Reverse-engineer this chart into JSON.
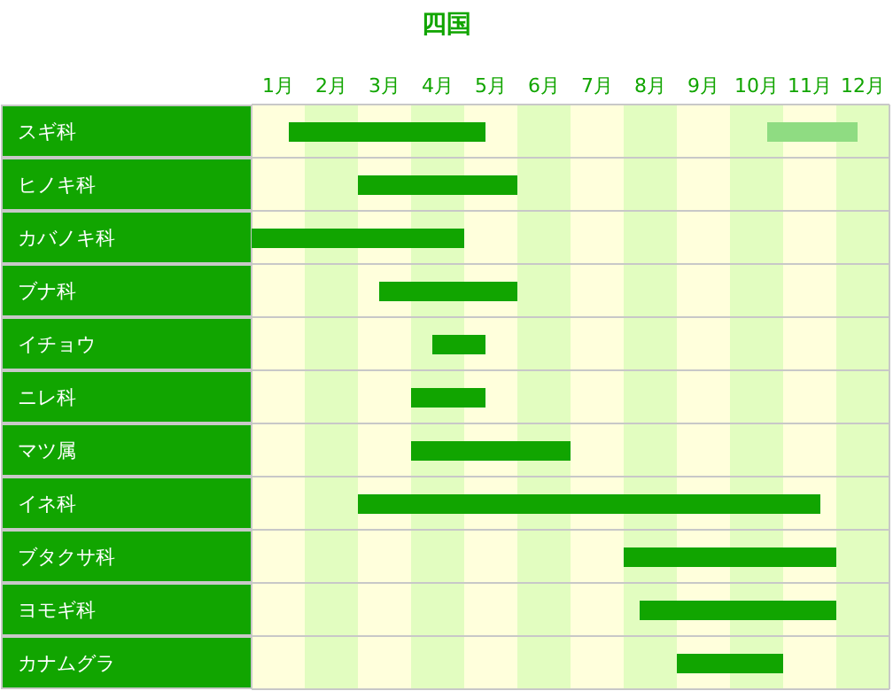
{
  "chart_data": {
    "type": "bar",
    "orientation": "horizontal",
    "title": "四国",
    "categories": [
      "スギ科",
      "ヒノキ科",
      "カバノキ科",
      "ブナ科",
      "イチョウ",
      "ニレ科",
      "マツ属",
      "イネ科",
      "ブタクサ科",
      "ヨモギ科",
      "カナムグラ"
    ],
    "xlim": [
      0,
      12
    ],
    "xticks": [
      {
        "value": 0.5,
        "label": "1月"
      },
      {
        "value": 1.5,
        "label": "2月"
      },
      {
        "value": 2.5,
        "label": "3月"
      },
      {
        "value": 3.5,
        "label": "4月"
      },
      {
        "value": 4.5,
        "label": "5月"
      },
      {
        "value": 5.5,
        "label": "6月"
      },
      {
        "value": 6.5,
        "label": "7月"
      },
      {
        "value": 7.5,
        "label": "8月"
      },
      {
        "value": 8.5,
        "label": "9月"
      },
      {
        "value": 9.5,
        "label": "10月"
      },
      {
        "value": 10.5,
        "label": "11月"
      },
      {
        "value": 11.5,
        "label": "12月"
      }
    ],
    "bands": [
      {
        "axis": "x",
        "from": 0,
        "to": 1,
        "color": "#ffffdc"
      },
      {
        "axis": "x",
        "from": 1,
        "to": 2,
        "color": "#e2fdc0"
      },
      {
        "axis": "x",
        "from": 2,
        "to": 3,
        "color": "#ffffdc"
      },
      {
        "axis": "x",
        "from": 3,
        "to": 4,
        "color": "#e2fdc0"
      },
      {
        "axis": "x",
        "from": 4,
        "to": 5,
        "color": "#ffffdc"
      },
      {
        "axis": "x",
        "from": 5,
        "to": 6,
        "color": "#e2fdc0"
      },
      {
        "axis": "x",
        "from": 6,
        "to": 7,
        "color": "#ffffdc"
      },
      {
        "axis": "x",
        "from": 7,
        "to": 8,
        "color": "#e2fdc0"
      },
      {
        "axis": "x",
        "from": 8,
        "to": 9,
        "color": "#ffffdc"
      },
      {
        "axis": "x",
        "from": 9,
        "to": 10,
        "color": "#e2fdc0"
      },
      {
        "axis": "x",
        "from": 10,
        "to": 11,
        "color": "#ffffdc"
      },
      {
        "axis": "x",
        "from": 11,
        "to": 12,
        "color": "#e2fdc0"
      }
    ],
    "series": [
      {
        "color": "#11a500",
        "base": [
          0.7,
          2.0,
          0.0,
          2.4,
          3.4,
          3.0,
          3.0,
          2.0,
          7.0,
          7.3,
          8.0
        ],
        "values": [
          3.7,
          3.0,
          4.0,
          2.6,
          1.0,
          1.4,
          3.0,
          8.7,
          4.0,
          3.7,
          2.0
        ]
      },
      {
        "color": "#8fdc82",
        "base": [
          9.7,
          null,
          null,
          null,
          null,
          null,
          null,
          null,
          null,
          null,
          null
        ],
        "values": [
          1.7,
          null,
          null,
          null,
          null,
          null,
          null,
          null,
          null,
          null,
          null
        ]
      }
    ]
  }
}
